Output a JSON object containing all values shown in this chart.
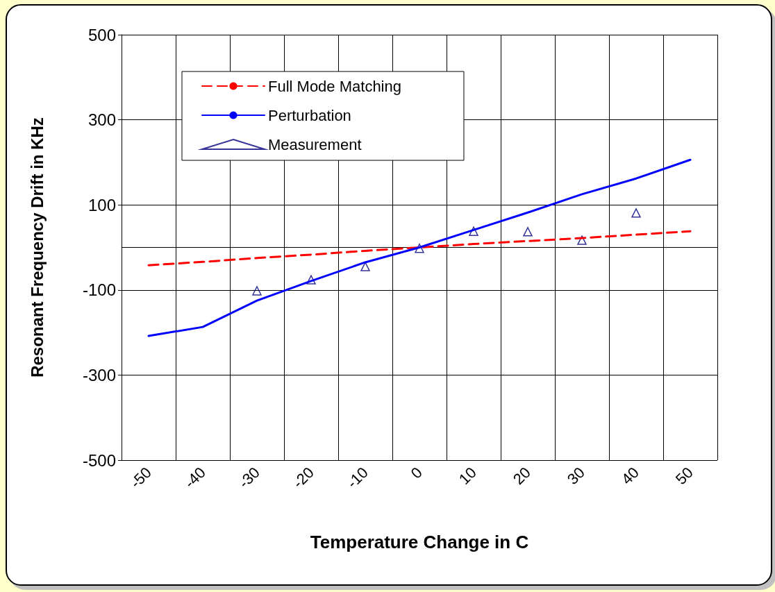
{
  "chart_data": {
    "type": "line",
    "xlabel": "Temperature Change in C",
    "ylabel": "Resonant Frequency Drift in KHz",
    "categories": [
      "-50",
      "-40",
      "-30",
      "-20",
      "-10",
      "0",
      "10",
      "20",
      "30",
      "40",
      "50"
    ],
    "series": [
      {
        "name": "Full Mode Matching",
        "color": "#ff0000",
        "line_style": "dashed",
        "marker": "none",
        "values": [
          -42,
          -34,
          -25,
          -17,
          -8,
          0,
          8,
          15,
          22,
          30,
          38
        ]
      },
      {
        "name": "Perturbation",
        "color": "#0000ff",
        "line_style": "solid",
        "marker": "none",
        "values": [
          -208,
          -187,
          -125,
          -79,
          -35,
          0,
          41,
          82,
          125,
          162,
          206
        ]
      },
      {
        "name": "Measurement",
        "type": "scatter",
        "color": "#000080",
        "marker": "triangle",
        "values": [
          null,
          null,
          -102,
          -76,
          -45,
          -2,
          38,
          37,
          17,
          81,
          null
        ]
      }
    ],
    "ylim": [
      -500,
      500
    ],
    "yticks": [
      -500,
      -300,
      -100,
      100,
      300,
      500
    ],
    "grid": true,
    "legend": "top left"
  }
}
